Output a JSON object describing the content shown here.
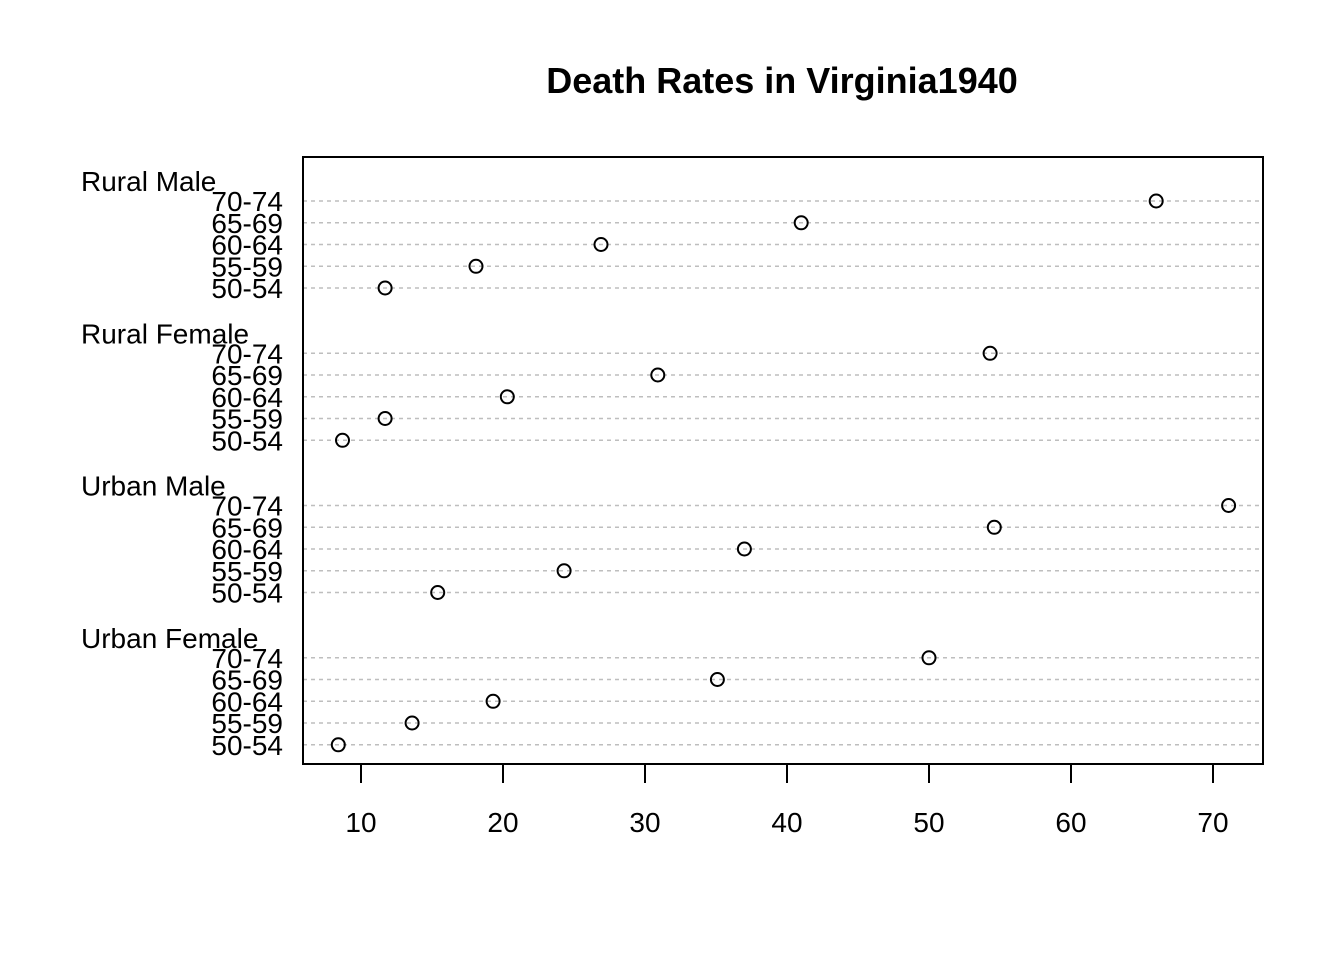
{
  "chart_data": {
    "type": "dotchart",
    "title": "Death Rates in Virginia1940",
    "xlabel": "",
    "ylabel": "",
    "xlim": [
      6,
      73.5
    ],
    "x_ticks": [
      10,
      20,
      30,
      40,
      50,
      60,
      70
    ],
    "grid": "horizontal dashed",
    "groups": [
      {
        "name": "Rural Male",
        "rows": [
          {
            "label": "70-74",
            "value": 66.0
          },
          {
            "label": "65-69",
            "value": 41.0
          },
          {
            "label": "60-64",
            "value": 26.9
          },
          {
            "label": "55-59",
            "value": 18.1
          },
          {
            "label": "50-54",
            "value": 11.7
          }
        ]
      },
      {
        "name": "Rural Female",
        "rows": [
          {
            "label": "70-74",
            "value": 54.3
          },
          {
            "label": "65-69",
            "value": 30.9
          },
          {
            "label": "60-64",
            "value": 20.3
          },
          {
            "label": "55-59",
            "value": 11.7
          },
          {
            "label": "50-54",
            "value": 8.7
          }
        ]
      },
      {
        "name": "Urban Male",
        "rows": [
          {
            "label": "70-74",
            "value": 71.1
          },
          {
            "label": "65-69",
            "value": 54.6
          },
          {
            "label": "60-64",
            "value": 37.0
          },
          {
            "label": "55-59",
            "value": 24.3
          },
          {
            "label": "50-54",
            "value": 15.4
          }
        ]
      },
      {
        "name": "Urban Female",
        "rows": [
          {
            "label": "70-74",
            "value": 50.0
          },
          {
            "label": "65-69",
            "value": 35.1
          },
          {
            "label": "60-64",
            "value": 19.3
          },
          {
            "label": "55-59",
            "value": 13.6
          },
          {
            "label": "50-54",
            "value": 8.4
          }
        ]
      }
    ]
  }
}
